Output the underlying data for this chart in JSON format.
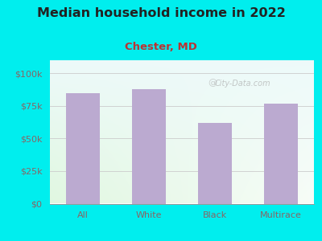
{
  "title": "Median household income in 2022",
  "subtitle": "Chester, MD",
  "categories": [
    "All",
    "White",
    "Black",
    "Multirace"
  ],
  "values": [
    85000,
    88000,
    62000,
    77000
  ],
  "bar_color": "#bbaad0",
  "background_color": "#00EEEE",
  "title_color": "#222222",
  "subtitle_color": "#bb3333",
  "tick_color": "#886666",
  "yticks": [
    0,
    25000,
    50000,
    75000,
    100000
  ],
  "ytick_labels": [
    "$0",
    "$25k",
    "$50k",
    "$75k",
    "$100k"
  ],
  "ylim": [
    0,
    110000
  ],
  "watermark": "City-Data.com",
  "title_fontsize": 11.5,
  "subtitle_fontsize": 9.5,
  "tick_fontsize": 8
}
